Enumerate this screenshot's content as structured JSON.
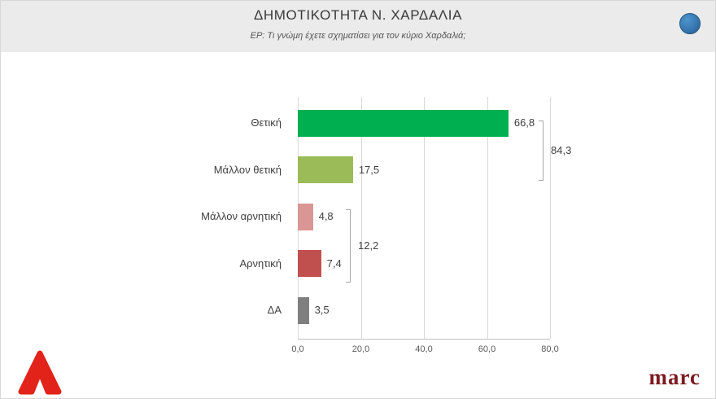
{
  "header": {
    "title": "ΔΗΜΟΤΙΚΟΤΗΤΑ Ν. ΧΑΡΔΑΛΙΑ",
    "subtitle": "ΕΡ: Τι γνώμη έχετε σχηματίσει για τον κύριο Χαρδαλιά;"
  },
  "chart_data": {
    "type": "bar",
    "orientation": "horizontal",
    "title": "ΔΗΜΟΤΙΚΟΤΗΤΑ Ν. ΧΑΡΔΑΛΙΑ",
    "categories": [
      "Θετική",
      "Μάλλον θετική",
      "Μάλλον αρνητική",
      "Αρνητική",
      "ΔΑ"
    ],
    "values": [
      66.8,
      17.5,
      4.8,
      7.4,
      3.5
    ],
    "value_labels": [
      "66,8",
      "17,5",
      "4,8",
      "7,4",
      "3,5"
    ],
    "bar_colors": [
      "#00b050",
      "#9bbb59",
      "#d99694",
      "#c0504d",
      "#7f7f7f"
    ],
    "xlim": [
      0,
      80
    ],
    "x_ticks": [
      0,
      20,
      40,
      60,
      80
    ],
    "x_tick_labels": [
      "0,0",
      "20,0",
      "40,0",
      "60,0",
      "80,0"
    ],
    "grid": true,
    "legend": false,
    "annotations": [
      {
        "label": "84,3",
        "group": [
          0,
          1
        ],
        "meaning": "sum of positive answers"
      },
      {
        "label": "12,2",
        "group": [
          2,
          3
        ],
        "meaning": "sum of negative answers"
      }
    ]
  },
  "icons": {
    "blue_dot": "blue-circle-icon",
    "alpha": "alpha-tv-logo"
  },
  "footer": {
    "brand_right": "marc"
  }
}
